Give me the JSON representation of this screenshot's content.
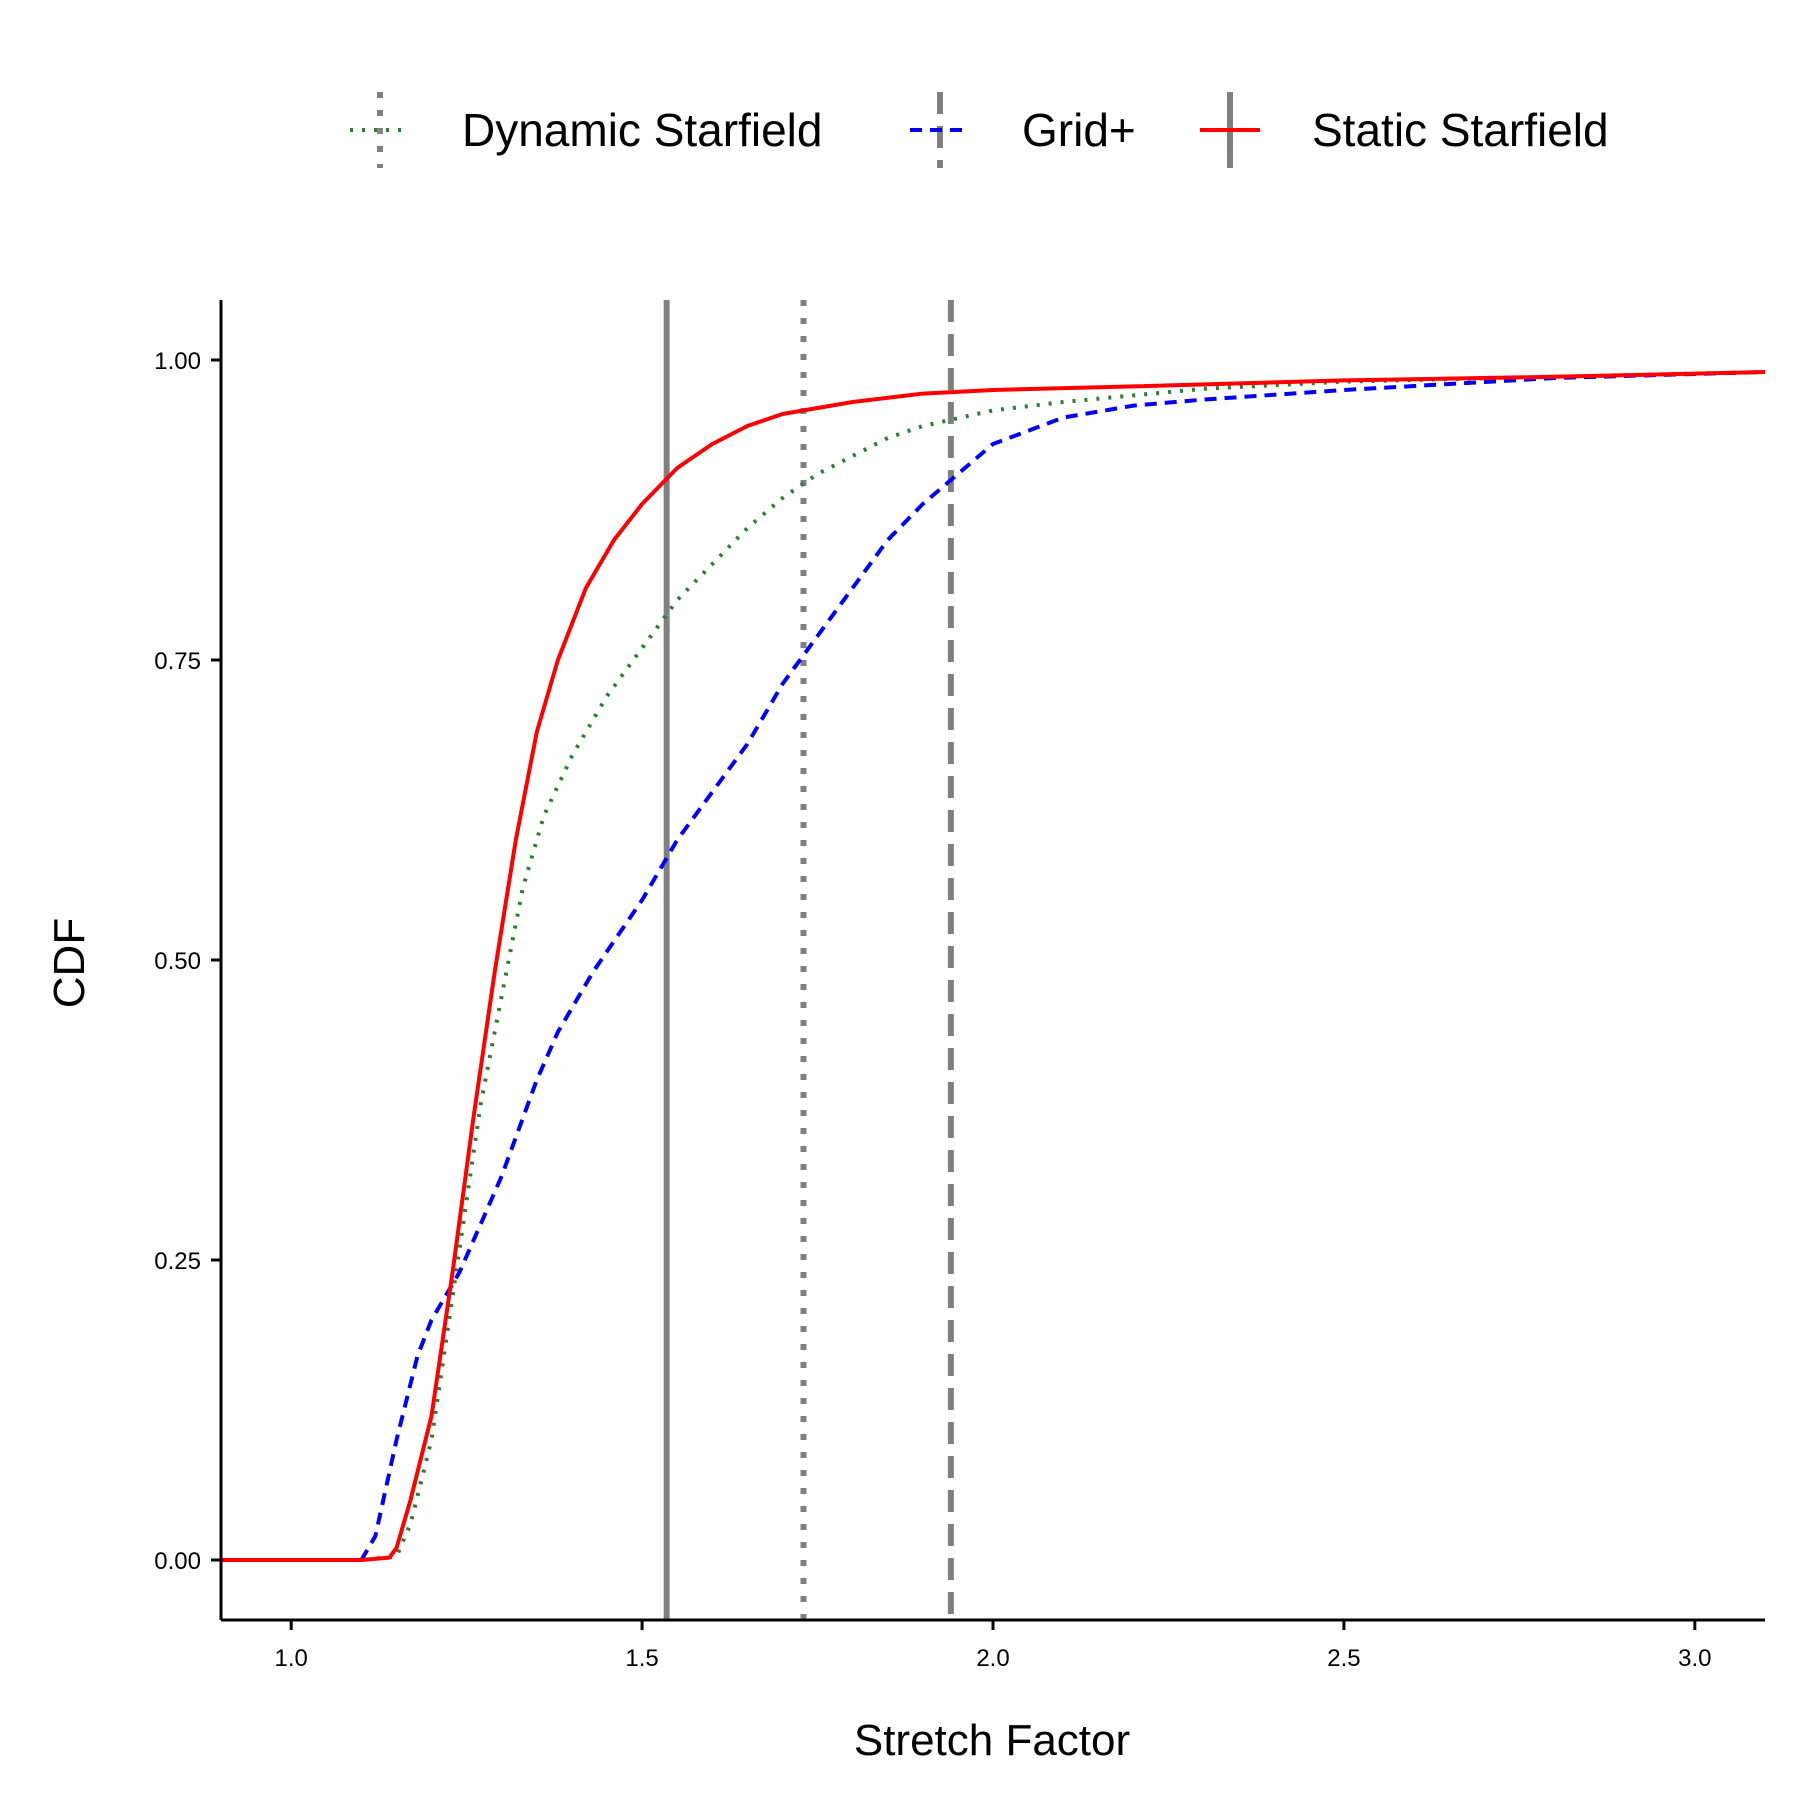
{
  "chart_data": {
    "type": "line",
    "title": "",
    "xlabel": "Stretch Factor",
    "ylabel": "CDF",
    "xlim": [
      0.9,
      3.1
    ],
    "ylim": [
      -0.05,
      1.05
    ],
    "x_ticks": [
      1.0,
      1.5,
      2.0,
      2.5,
      3.0
    ],
    "x_tick_labels": [
      "1.0",
      "1.5",
      "2.0",
      "2.5",
      "3.0"
    ],
    "y_ticks": [
      0.0,
      0.25,
      0.5,
      0.75,
      1.0
    ],
    "y_tick_labels": [
      "0.00",
      "0.25",
      "0.50",
      "0.75",
      "1.00"
    ],
    "grid": false,
    "legend_position": "top",
    "series": [
      {
        "name": "Dynamic Starfield",
        "color": "#2e7d32",
        "style": "dotted",
        "median": 1.73,
        "points": [
          [
            0.9,
            0
          ],
          [
            1.1,
            0
          ],
          [
            1.15,
            0.003
          ],
          [
            1.17,
            0.03
          ],
          [
            1.2,
            0.1
          ],
          [
            1.23,
            0.22
          ],
          [
            1.27,
            0.38
          ],
          [
            1.3,
            0.47
          ],
          [
            1.33,
            0.56
          ],
          [
            1.36,
            0.62
          ],
          [
            1.4,
            0.67
          ],
          [
            1.45,
            0.72
          ],
          [
            1.5,
            0.76
          ],
          [
            1.55,
            0.8
          ],
          [
            1.6,
            0.83
          ],
          [
            1.65,
            0.86
          ],
          [
            1.7,
            0.885
          ],
          [
            1.75,
            0.905
          ],
          [
            1.8,
            0.92
          ],
          [
            1.85,
            0.935
          ],
          [
            1.9,
            0.945
          ],
          [
            2.0,
            0.958
          ],
          [
            2.1,
            0.965
          ],
          [
            2.3,
            0.976
          ],
          [
            2.5,
            0.982
          ],
          [
            2.8,
            0.986
          ],
          [
            3.1,
            0.99
          ]
        ]
      },
      {
        "name": "Grid+",
        "color": "#0000ff",
        "style": "dashed",
        "median": 1.94,
        "points": [
          [
            0.9,
            0
          ],
          [
            1.1,
            0
          ],
          [
            1.12,
            0.02
          ],
          [
            1.15,
            0.1
          ],
          [
            1.18,
            0.17
          ],
          [
            1.2,
            0.2
          ],
          [
            1.24,
            0.24
          ],
          [
            1.27,
            0.28
          ],
          [
            1.3,
            0.32
          ],
          [
            1.35,
            0.4
          ],
          [
            1.38,
            0.44
          ],
          [
            1.43,
            0.49
          ],
          [
            1.5,
            0.55
          ],
          [
            1.55,
            0.6
          ],
          [
            1.6,
            0.64
          ],
          [
            1.65,
            0.68
          ],
          [
            1.7,
            0.73
          ],
          [
            1.75,
            0.77
          ],
          [
            1.8,
            0.81
          ],
          [
            1.85,
            0.85
          ],
          [
            1.9,
            0.88
          ],
          [
            1.95,
            0.905
          ],
          [
            2.0,
            0.93
          ],
          [
            2.1,
            0.952
          ],
          [
            2.2,
            0.962
          ],
          [
            2.3,
            0.967
          ],
          [
            2.5,
            0.975
          ],
          [
            2.8,
            0.985
          ],
          [
            3.1,
            0.99
          ]
        ]
      },
      {
        "name": "Static Starfield",
        "color": "#ff0000",
        "style": "solid",
        "median": 1.535,
        "points": [
          [
            0.9,
            0
          ],
          [
            1.1,
            0
          ],
          [
            1.14,
            0.002
          ],
          [
            1.15,
            0.01
          ],
          [
            1.17,
            0.05
          ],
          [
            1.2,
            0.12
          ],
          [
            1.23,
            0.24
          ],
          [
            1.26,
            0.37
          ],
          [
            1.29,
            0.49
          ],
          [
            1.32,
            0.6
          ],
          [
            1.35,
            0.69
          ],
          [
            1.38,
            0.75
          ],
          [
            1.42,
            0.81
          ],
          [
            1.46,
            0.85
          ],
          [
            1.5,
            0.88
          ],
          [
            1.55,
            0.91
          ],
          [
            1.6,
            0.93
          ],
          [
            1.65,
            0.945
          ],
          [
            1.7,
            0.955
          ],
          [
            1.8,
            0.965
          ],
          [
            1.9,
            0.972
          ],
          [
            2.0,
            0.975
          ],
          [
            2.2,
            0.978
          ],
          [
            2.5,
            0.983
          ],
          [
            2.8,
            0.986
          ],
          [
            3.1,
            0.99
          ]
        ]
      }
    ],
    "reference_lines": [
      {
        "series": "Static Starfield",
        "x": 1.535,
        "style": "solid",
        "color": "#808080"
      },
      {
        "series": "Dynamic Starfield",
        "x": 1.73,
        "style": "dotted",
        "color": "#808080"
      },
      {
        "series": "Grid+",
        "x": 1.94,
        "style": "dashed",
        "color": "#808080"
      }
    ]
  }
}
